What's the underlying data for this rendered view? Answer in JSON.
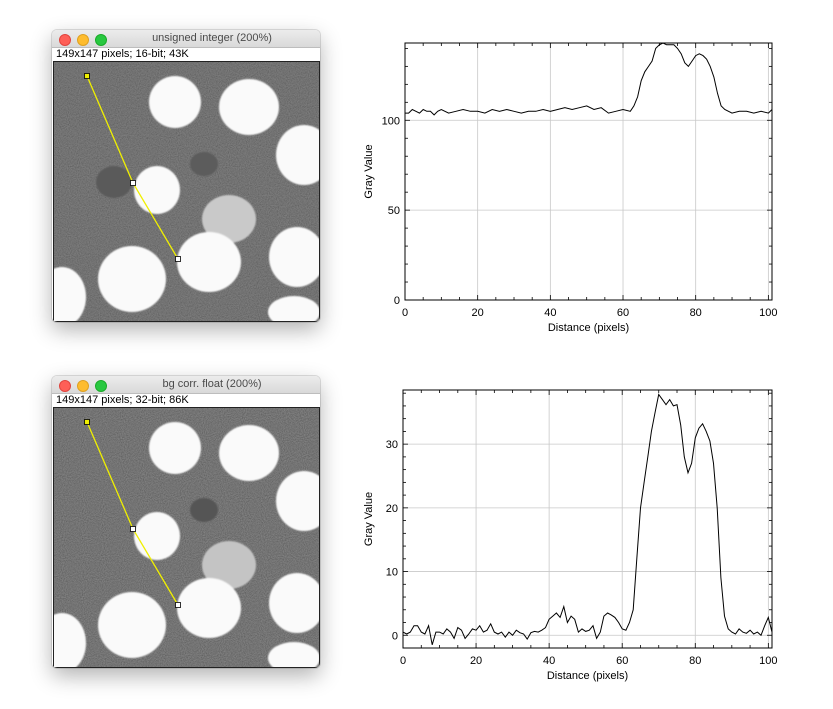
{
  "windows": [
    {
      "title": "unsigned integer (200%)",
      "info": "149x147 pixels; 16-bit; 43K"
    },
    {
      "title": "bg corr. float (200%)",
      "info": "149x147 pixels; 32-bit; 86K"
    }
  ],
  "chart_data": [
    {
      "type": "line",
      "title": "",
      "xlabel": "Distance (pixels)",
      "ylabel": "Gray Value",
      "xlim": [
        0,
        101
      ],
      "ylim": [
        0,
        143
      ],
      "xticks": [
        0,
        20,
        40,
        60,
        80,
        100
      ],
      "yticks": [
        0,
        50,
        100
      ],
      "grid": true,
      "series": [
        {
          "x": [
            0,
            1,
            2,
            3,
            4,
            5,
            6,
            7,
            8,
            9,
            10,
            12,
            14,
            16,
            18,
            20,
            22,
            24,
            26,
            28,
            30,
            32,
            34,
            36,
            38,
            40,
            42,
            44,
            46,
            48,
            50,
            52,
            54,
            56,
            58,
            60,
            62,
            63,
            64,
            65,
            66,
            67,
            68,
            69,
            70,
            71,
            72,
            73,
            74,
            75,
            76,
            77,
            78,
            79,
            80,
            81,
            82,
            83,
            84,
            85,
            86,
            87,
            88,
            90,
            92,
            94,
            96,
            98,
            100,
            101
          ],
          "y": [
            104,
            104,
            106,
            105,
            104,
            106,
            105,
            105,
            103,
            105,
            106,
            104,
            105,
            106,
            105,
            105,
            104,
            106,
            105,
            106,
            105,
            104,
            105,
            105,
            106,
            105,
            106,
            107,
            106,
            107,
            108,
            106,
            107,
            104,
            105,
            106,
            105,
            108,
            113,
            122,
            127,
            130,
            133,
            140,
            142,
            143,
            142,
            142,
            142,
            140,
            137,
            132,
            130,
            133,
            136,
            137,
            136,
            134,
            130,
            124,
            115,
            108,
            106,
            104,
            105,
            105,
            104,
            105,
            104,
            106
          ]
        }
      ]
    },
    {
      "type": "line",
      "title": "",
      "xlabel": "Distance (pixels)",
      "ylabel": "Gray Value",
      "xlim": [
        0,
        101
      ],
      "ylim": [
        -2,
        38.5
      ],
      "xticks": [
        0,
        20,
        40,
        60,
        80,
        100
      ],
      "yticks": [
        0,
        10,
        20,
        30
      ],
      "grid": true,
      "series": [
        {
          "x": [
            0,
            1,
            2,
            3,
            4,
            5,
            6,
            7,
            8,
            9,
            10,
            11,
            12,
            13,
            14,
            15,
            16,
            17,
            18,
            19,
            20,
            21,
            22,
            23,
            24,
            25,
            26,
            27,
            28,
            29,
            30,
            31,
            32,
            33,
            34,
            35,
            36,
            37,
            38,
            39,
            40,
            41,
            42,
            43,
            44,
            45,
            46,
            47,
            48,
            49,
            50,
            51,
            52,
            53,
            54,
            55,
            56,
            57,
            58,
            59,
            60,
            61,
            62,
            63,
            64,
            65,
            66,
            67,
            68,
            69,
            70,
            71,
            72,
            73,
            74,
            75,
            76,
            77,
            78,
            79,
            80,
            81,
            82,
            83,
            84,
            85,
            86,
            87,
            88,
            89,
            90,
            91,
            92,
            93,
            94,
            95,
            96,
            97,
            98,
            99,
            100,
            101
          ],
          "y": [
            0.5,
            0.2,
            0.5,
            1.5,
            1.5,
            0.5,
            0.2,
            1.5,
            -1.5,
            0.5,
            0.5,
            0.2,
            1.0,
            0.5,
            -0.5,
            1.2,
            0.8,
            -0.5,
            0.2,
            1.0,
            0.8,
            1.5,
            0.5,
            0.8,
            1.8,
            0.5,
            0.2,
            0.5,
            -0.3,
            0.5,
            0.0,
            0.8,
            0.4,
            0.2,
            -0.6,
            0.4,
            0.6,
            0.5,
            0.8,
            1.2,
            2.5,
            3.0,
            3.5,
            2.8,
            4.5,
            2.0,
            3.0,
            2.5,
            0.5,
            1.0,
            0.6,
            0.8,
            1.5,
            -0.5,
            0.5,
            3.0,
            3.5,
            3.2,
            2.8,
            2.0,
            1.0,
            0.8,
            2.0,
            4.0,
            12.0,
            20.0,
            24.0,
            28.0,
            32.0,
            35.0,
            37.8,
            37.0,
            36.2,
            37.0,
            36.0,
            36.2,
            33.0,
            28.0,
            25.5,
            27.0,
            31.0,
            32.5,
            33.2,
            32.0,
            30.5,
            27.0,
            20.0,
            9.0,
            3.0,
            1.0,
            0.5,
            0.2,
            1.0,
            0.5,
            0.3,
            0.8,
            0.2,
            0.5,
            0.0,
            1.5,
            2.8,
            0.5
          ]
        }
      ]
    }
  ]
}
